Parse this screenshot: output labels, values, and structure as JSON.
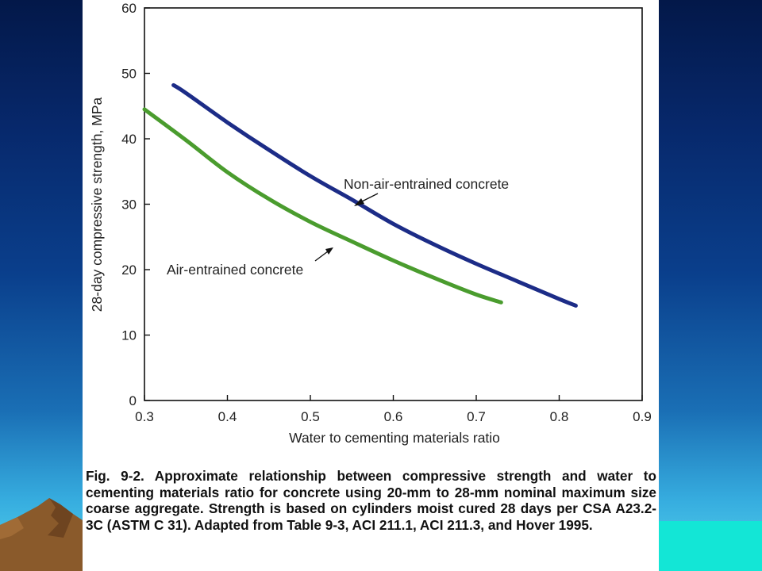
{
  "chart_data": {
    "type": "line",
    "xlabel": "Water to cementing materials ratio",
    "ylabel": "28-day compressive strength, MPa",
    "xlim": [
      0.3,
      0.9
    ],
    "ylim": [
      0,
      60
    ],
    "x_ticks": [
      "0.3",
      "0.4",
      "0.5",
      "0.6",
      "0.7",
      "0.8",
      "0.9"
    ],
    "y_ticks": [
      "0",
      "10",
      "20",
      "30",
      "40",
      "50",
      "60"
    ],
    "grid": false,
    "series": [
      {
        "name": "Non-air-entrained concrete",
        "color": "#1c2c87",
        "x": [
          0.335,
          0.35,
          0.4,
          0.45,
          0.5,
          0.55,
          0.6,
          0.65,
          0.7,
          0.75,
          0.8,
          0.82
        ],
        "y": [
          48.2,
          47.0,
          42.5,
          38.3,
          34.3,
          30.7,
          27.0,
          23.8,
          20.9,
          18.2,
          15.5,
          14.5
        ]
      },
      {
        "name": "Air-entrained concrete",
        "color": "#4a9c2e",
        "x": [
          0.3,
          0.35,
          0.4,
          0.45,
          0.5,
          0.55,
          0.6,
          0.65,
          0.7,
          0.73
        ],
        "y": [
          44.5,
          39.8,
          34.9,
          30.8,
          27.3,
          24.3,
          21.4,
          18.7,
          16.2,
          15.0
        ]
      }
    ],
    "annotations": [
      {
        "text": "Non-air-entrained concrete",
        "series": 0
      },
      {
        "text": "Air-entrained concrete",
        "series": 1
      }
    ]
  },
  "caption": "Fig. 9-2. Approximate relationship between compressive strength and water to cementing materials ratio for concrete using 20-mm to 28-mm nominal maximum size coarse aggregate. Strength is based on cylinders moist cured 28 days per CSA A23.2-3C (ASTM C 31). Adapted from Table 9-3, ACI 211.1, ACI 211.3, and Hover 1995.",
  "colors": {
    "background_top": "#031849",
    "background_bottom": "#55d3ea",
    "teal_bar": "#13e6d6",
    "mountain": "#8a5a2b"
  }
}
